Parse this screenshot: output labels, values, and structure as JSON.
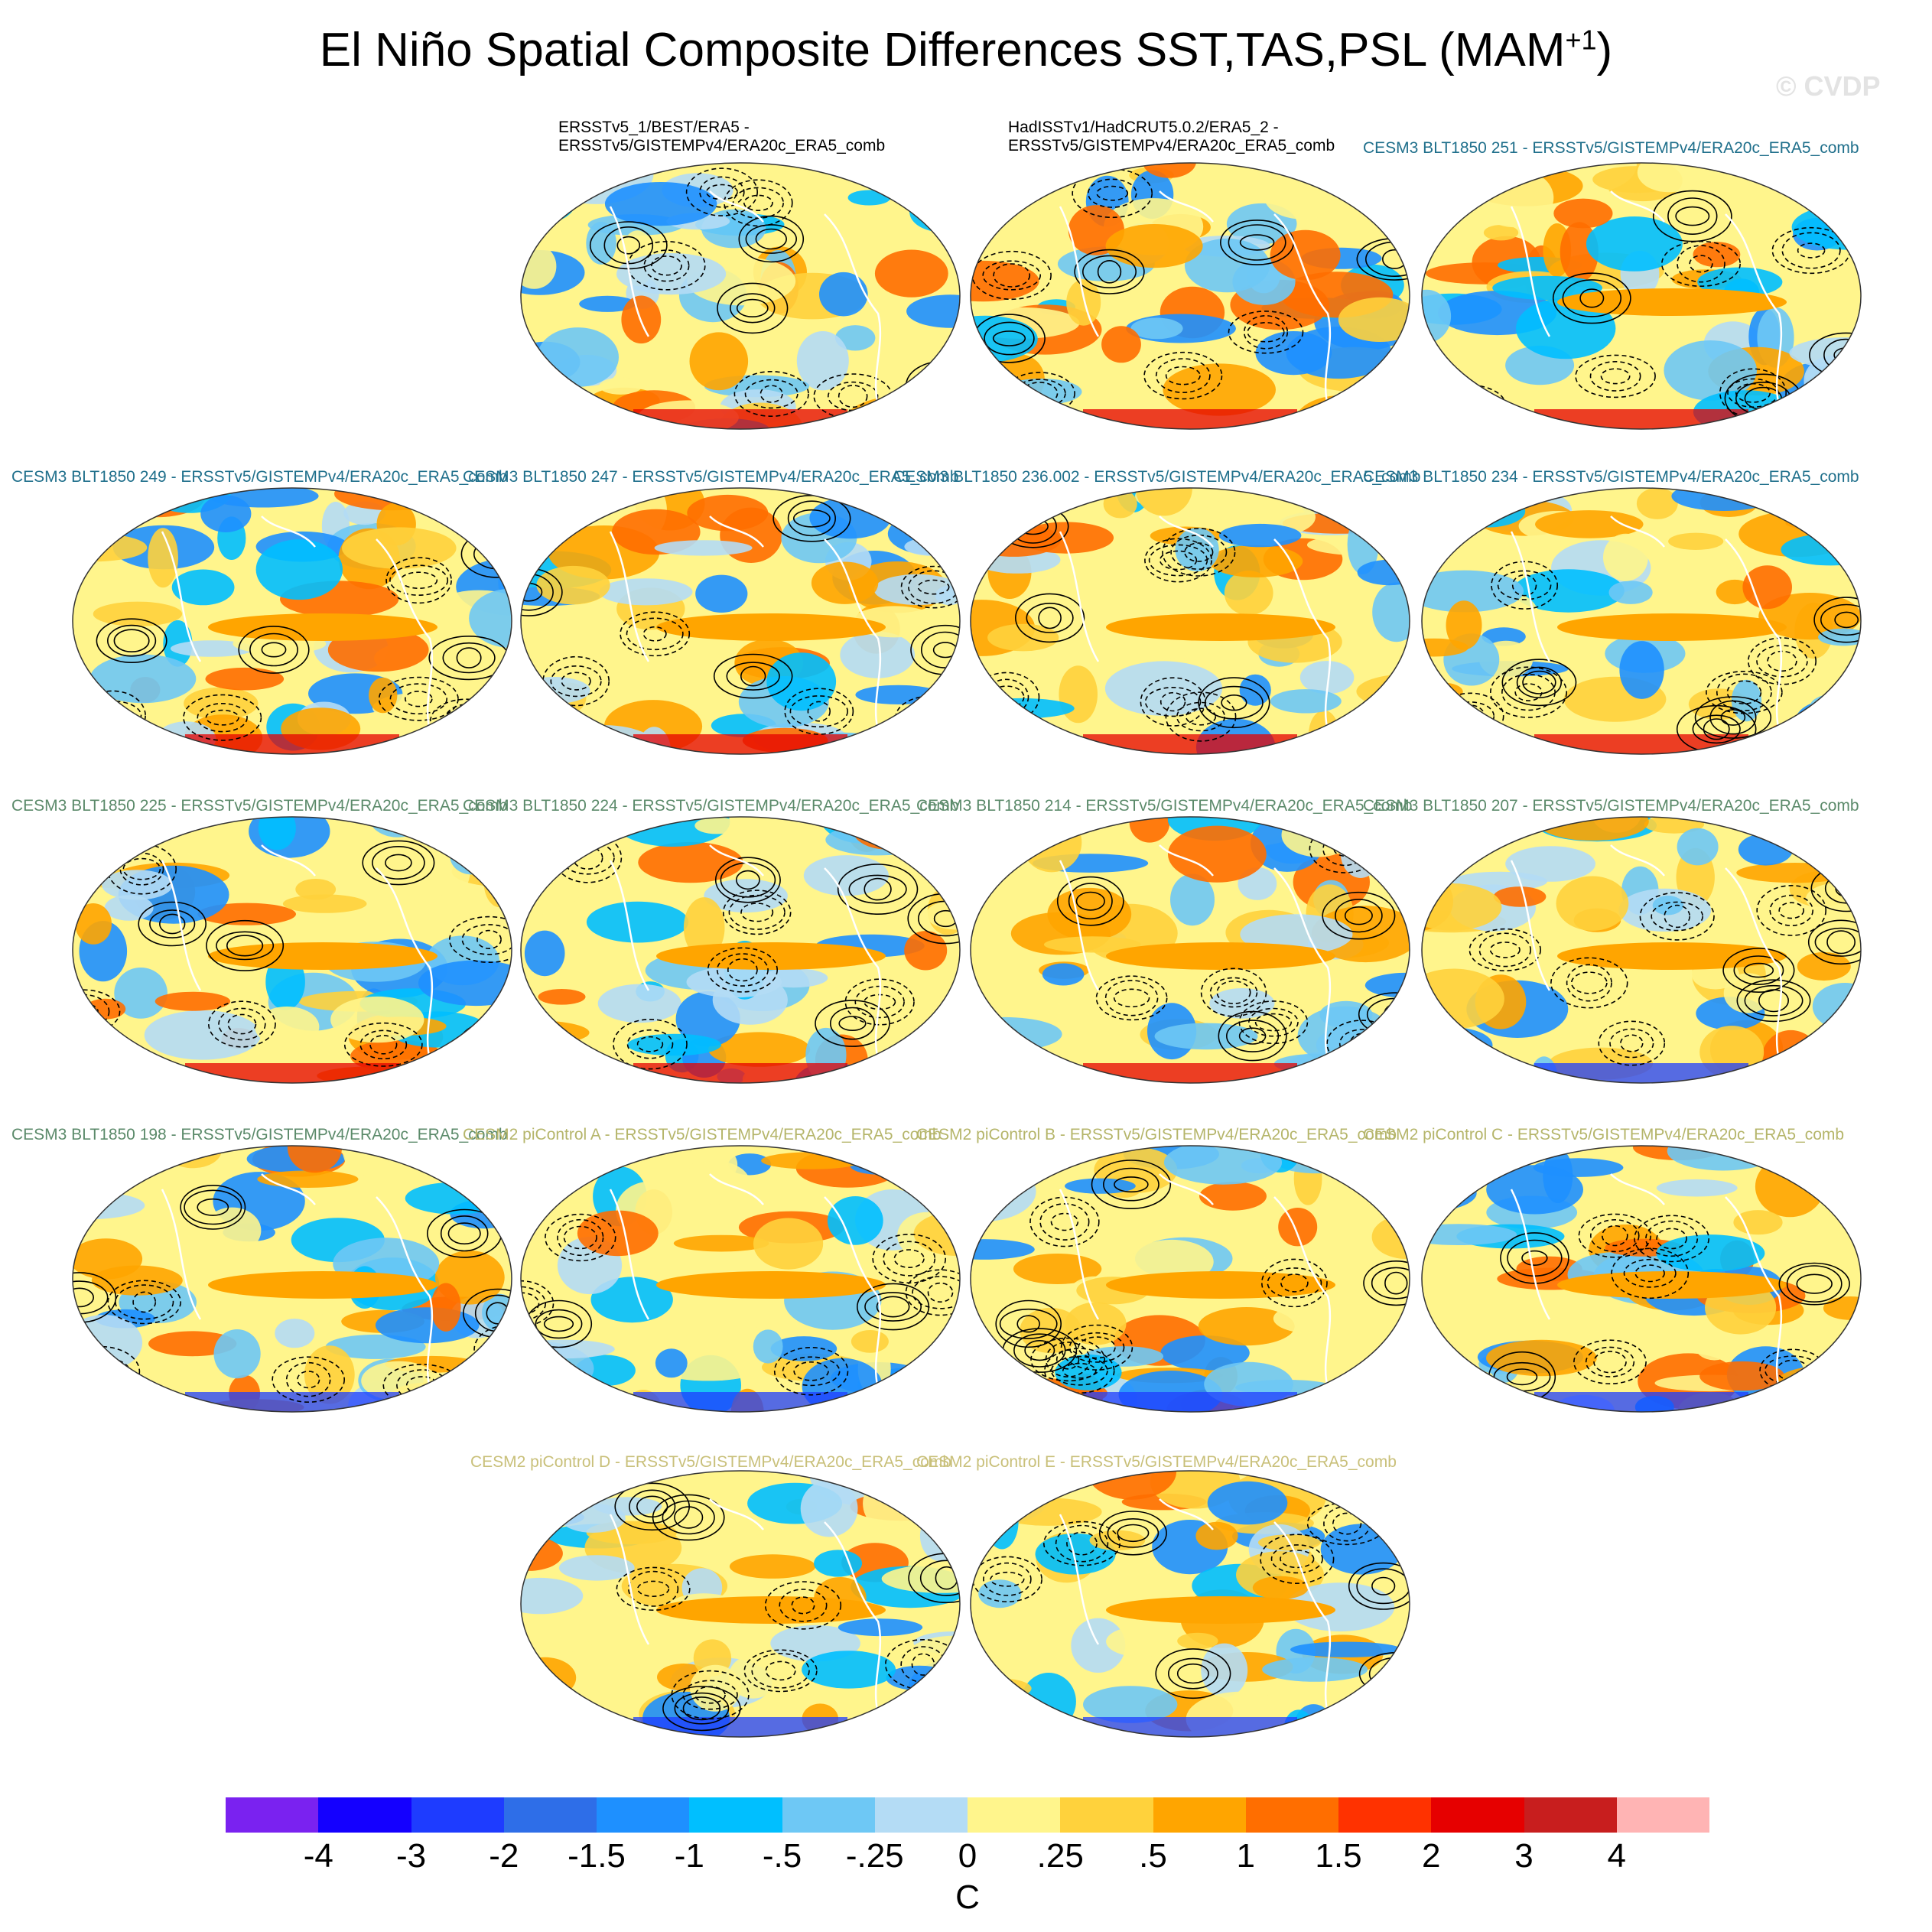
{
  "title": {
    "main": "El Niño Spatial Composite Differences SST,TAS,PSL (MAM",
    "sup": "+1",
    "close": ")"
  },
  "watermark": "© CVDP",
  "panels": [
    {
      "label_lines": [
        "ERSSTv5_1/BEST/ERA5 -",
        "ERSSTv5/GISTEMPv4/ERA20c_ERA5_comb"
      ],
      "label_color": "#000000",
      "pattern": 0
    },
    {
      "label_lines": [
        "HadISSTv1/HadCRUT5.0.2/ERA5_2 -",
        "ERSSTv5/GISTEMPv4/ERA20c_ERA5_comb"
      ],
      "label_color": "#000000",
      "pattern": 1
    },
    {
      "label_lines": [
        "CESM3 BLT1850 251 - ERSSTv5/GISTEMPv4/ERA20c_ERA5_comb"
      ],
      "label_color": "#1f6f8b",
      "pattern": 2
    },
    {
      "label_lines": [
        "CESM3 BLT1850 249 - ERSSTv5/GISTEMPv4/ERA20c_ERA5_comb"
      ],
      "label_color": "#1f6f8b",
      "pattern": 3
    },
    {
      "label_lines": [
        "CESM3 BLT1850 247 - ERSSTv5/GISTEMPv4/ERA20c_ERA5_comb"
      ],
      "label_color": "#1f6f8b",
      "pattern": 4
    },
    {
      "label_lines": [
        "CESM3 BLT1850 236.002 - ERSSTv5/GISTEMPv4/ERA20c_ERA5_comb"
      ],
      "label_color": "#1f6f8b",
      "pattern": 5
    },
    {
      "label_lines": [
        "CESM3 BLT1850 234 - ERSSTv5/GISTEMPv4/ERA20c_ERA5_comb"
      ],
      "label_color": "#1f6f8b",
      "pattern": 6
    },
    {
      "label_lines": [
        "CESM3 BLT1850 225 - ERSSTv5/GISTEMPv4/ERA20c_ERA5_comb"
      ],
      "label_color": "#5b8a6a",
      "pattern": 7
    },
    {
      "label_lines": [
        "CESM3 BLT1850 224 - ERSSTv5/GISTEMPv4/ERA20c_ERA5_comb"
      ],
      "label_color": "#5b8a6a",
      "pattern": 8
    },
    {
      "label_lines": [
        "CESM3 BLT1850 214 - ERSSTv5/GISTEMPv4/ERA20c_ERA5_comb"
      ],
      "label_color": "#5b8a6a",
      "pattern": 9
    },
    {
      "label_lines": [
        "CESM3 BLT1850 207 - ERSSTv5/GISTEMPv4/ERA20c_ERA5_comb"
      ],
      "label_color": "#5b8a6a",
      "pattern": 10
    },
    {
      "label_lines": [
        "CESM3 BLT1850 198 - ERSSTv5/GISTEMPv4/ERA20c_ERA5_comb"
      ],
      "label_color": "#5b8a6a",
      "pattern": 11
    },
    {
      "label_lines": [
        "CESM2 piControl A - ERSSTv5/GISTEMPv4/ERA20c_ERA5_comb"
      ],
      "label_color": "#b5b56a",
      "pattern": 12
    },
    {
      "label_lines": [
        "CESM2 piControl B - ERSSTv5/GISTEMPv4/ERA20c_ERA5_comb"
      ],
      "label_color": "#b5b56a",
      "pattern": 13
    },
    {
      "label_lines": [
        "CESM2 piControl C - ERSSTv5/GISTEMPv4/ERA20c_ERA5_comb"
      ],
      "label_color": "#b5b56a",
      "pattern": 14
    },
    {
      "label_lines": [
        "CESM2 piControl D - ERSSTv5/GISTEMPv4/ERA20c_ERA5_comb"
      ],
      "label_color": "#c9c07a",
      "pattern": 15
    },
    {
      "label_lines": [
        "CESM2 piControl E - ERSSTv5/GISTEMPv4/ERA20c_ERA5_comb"
      ],
      "label_color": "#c9c07a",
      "pattern": 16
    }
  ],
  "colorbar": {
    "colors": [
      "#7a22f0",
      "#1400ff",
      "#1e3cff",
      "#2e6ee8",
      "#1e90ff",
      "#00bfff",
      "#6ec8f5",
      "#b4dcf5",
      "#fff58c",
      "#ffd23c",
      "#ffa500",
      "#ff6e00",
      "#ff3200",
      "#e60000",
      "#c81e1e",
      "#ffb4b4"
    ],
    "ticks": [
      "-4",
      "-3",
      "-2",
      "-1.5",
      "-1",
      "-.5",
      "-.25",
      "0",
      ".25",
      ".5",
      "1",
      "1.5",
      "2",
      "3",
      "4"
    ],
    "unit": "C"
  }
}
